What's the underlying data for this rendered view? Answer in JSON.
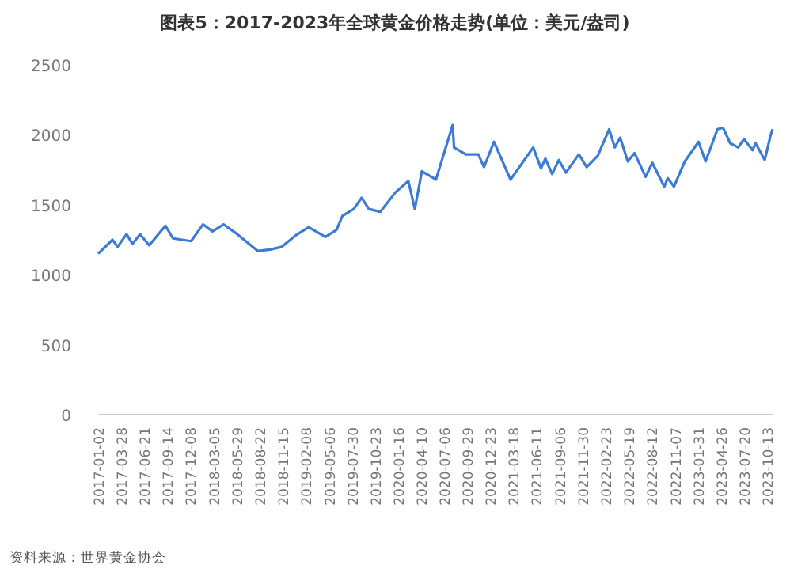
{
  "chart_data": {
    "type": "line",
    "title": "图表5：2017-2023年全球黄金价格走势(单位：美元/盎司)",
    "annotations": [
      "资料来源：世界黄金协会"
    ],
    "x": [
      "2017-01-02",
      "2017-02-24",
      "2017-03-15",
      "2017-04-17",
      "2017-05-09",
      "2017-06-06",
      "2017-07-10",
      "2017-09-08",
      "2017-10-06",
      "2017-12-12",
      "2018-01-25",
      "2018-03-01",
      "2018-04-11",
      "2018-06-01",
      "2018-08-16",
      "2018-10-01",
      "2018-11-13",
      "2019-01-02",
      "2019-02-20",
      "2019-04-23",
      "2019-06-03",
      "2019-06-25",
      "2019-08-06",
      "2019-09-04",
      "2019-10-01",
      "2019-11-12",
      "2020-01-08",
      "2020-02-24",
      "2020-03-19",
      "2020-04-14",
      "2020-06-05",
      "2020-08-06",
      "2020-08-11",
      "2020-09-24",
      "2020-11-09",
      "2020-11-30",
      "2021-01-06",
      "2021-03-08",
      "2021-05-31",
      "2021-06-29",
      "2021-07-15",
      "2021-08-09",
      "2021-09-03",
      "2021-09-29",
      "2021-11-16",
      "2021-12-15",
      "2022-01-25",
      "2022-03-08",
      "2022-03-29",
      "2022-04-18",
      "2022-05-16",
      "2022-06-10",
      "2022-07-21",
      "2022-08-15",
      "2022-09-28",
      "2022-10-11",
      "2022-11-03",
      "2022-12-13",
      "2023-02-02",
      "2023-02-28",
      "2023-04-13",
      "2023-05-04",
      "2023-05-30",
      "2023-06-29",
      "2023-07-20",
      "2023-08-21",
      "2023-09-01",
      "2023-10-05",
      "2023-10-27",
      "2023-11-03"
    ],
    "series": [
      {
        "color": "#3a7bd5",
        "values": [
          1150,
          1250,
          1200,
          1290,
          1220,
          1290,
          1210,
          1350,
          1260,
          1240,
          1360,
          1310,
          1360,
          1290,
          1170,
          1180,
          1200,
          1280,
          1340,
          1270,
          1320,
          1420,
          1470,
          1550,
          1470,
          1450,
          1590,
          1670,
          1470,
          1740,
          1680,
          2070,
          1910,
          1860,
          1860,
          1770,
          1950,
          1680,
          1910,
          1760,
          1830,
          1720,
          1820,
          1730,
          1860,
          1770,
          1850,
          2040,
          1910,
          1980,
          1810,
          1870,
          1700,
          1800,
          1630,
          1690,
          1630,
          1810,
          1950,
          1810,
          2040,
          2050,
          1940,
          1910,
          1970,
          1890,
          1940,
          1820,
          2000,
          2040
        ]
      }
    ],
    "xlim": [
      "2017-01-02",
      "2023-11-03"
    ],
    "xticks": [
      "2017-01-02",
      "2017-03-28",
      "2017-06-21",
      "2017-09-14",
      "2017-12-08",
      "2018-03-05",
      "2018-05-29",
      "2018-08-22",
      "2018-11-15",
      "2019-02-08",
      "2019-05-06",
      "2019-07-30",
      "2019-10-23",
      "2020-01-16",
      "2020-04-10",
      "2020-07-06",
      "2020-09-29",
      "2020-12-23",
      "2021-03-18",
      "2021-06-11",
      "2021-09-06",
      "2021-11-30",
      "2022-02-23",
      "2022-05-19",
      "2022-08-12",
      "2022-11-07",
      "2023-01-31",
      "2023-04-26",
      "2023-07-20",
      "2023-10-13"
    ],
    "ylim": [
      0,
      2500
    ],
    "yticks": [
      0,
      500,
      1000,
      1500,
      2000,
      2500
    ],
    "grid": false,
    "marker": "none",
    "line_style": "solid"
  }
}
